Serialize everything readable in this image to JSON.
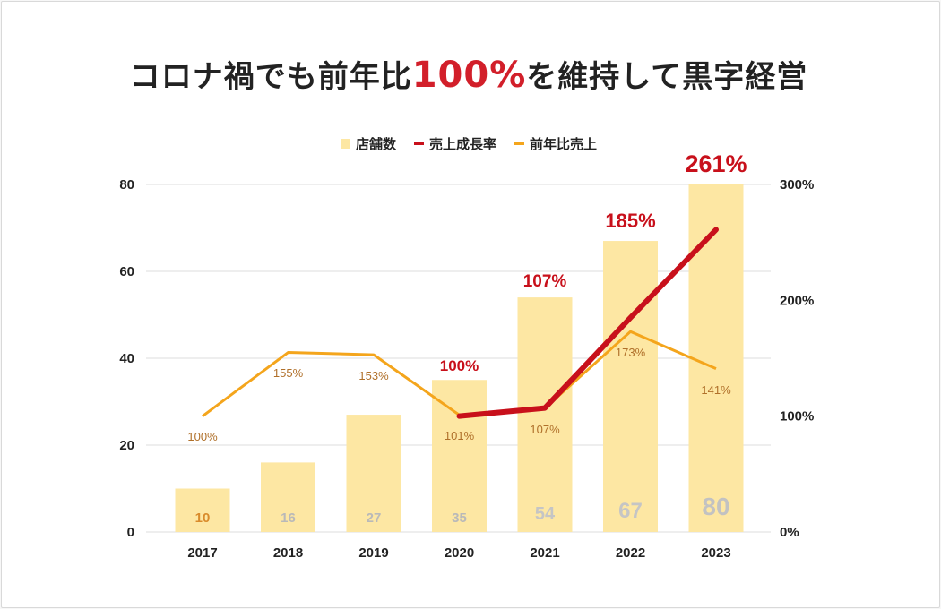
{
  "title_prefix": "コロナ禍でも前年比",
  "title_highlight": "100%",
  "title_suffix": "を維持して黒字経営",
  "colors": {
    "bar": "#fde7a3",
    "growth_line": "#c8101b",
    "yoy_line": "#f4a51c",
    "growth_label": "#c8101b",
    "yoy_label": "#b0702a",
    "grid": "#dddddd"
  },
  "chart_data": {
    "type": "bar",
    "categories": [
      "2017",
      "2018",
      "2019",
      "2020",
      "2021",
      "2022",
      "2023"
    ],
    "series": [
      {
        "name": "店舗数",
        "type": "bar",
        "axis": "left",
        "values": [
          10,
          16,
          27,
          35,
          54,
          67,
          80
        ],
        "labels": [
          "10",
          "16",
          "27",
          "35",
          "54",
          "67",
          "80"
        ]
      },
      {
        "name": "売上成長率",
        "type": "line",
        "axis": "right",
        "values": [
          null,
          null,
          null,
          100,
          107,
          185,
          261
        ],
        "labels": [
          "",
          "",
          "",
          "100%",
          "107%",
          "185%",
          "261%"
        ]
      },
      {
        "name": "前年比売上",
        "type": "line",
        "axis": "right",
        "values": [
          100,
          155,
          153,
          101,
          107,
          173,
          141
        ],
        "labels": [
          "100%",
          "155%",
          "153%",
          "101%",
          "107%",
          "173%",
          "141%"
        ]
      }
    ],
    "y_left": {
      "ticks": [
        "0",
        "20",
        "40",
        "60",
        "80"
      ],
      "range": [
        0,
        80
      ]
    },
    "y_right": {
      "ticks": [
        "0%",
        "100%",
        "200%",
        "300%"
      ],
      "range": [
        0,
        300
      ]
    },
    "legend_position": "top",
    "grid": true
  }
}
